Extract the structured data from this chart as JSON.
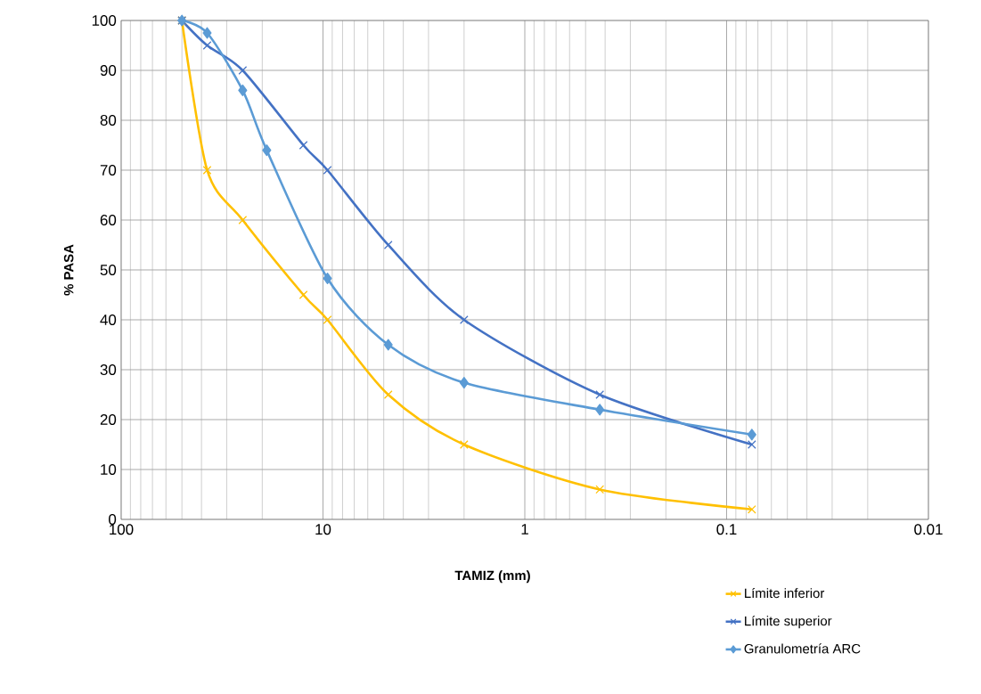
{
  "chart_data": {
    "type": "line",
    "xlabel": "TAMIZ (mm)",
    "ylabel": "% PASA",
    "log": "x",
    "grid": true,
    "legend": "bottom right",
    "line_style": "solid",
    "xlim": [
      100,
      0.01
    ],
    "xticks": [
      100,
      10,
      1,
      0.1,
      0.01
    ],
    "ylim": [
      0,
      100
    ],
    "yticks": [
      0,
      10,
      20,
      30,
      40,
      50,
      60,
      70,
      80,
      90,
      100
    ],
    "series": [
      {
        "name": "Límite inferior",
        "color": "#ffc000",
        "marker": "cross",
        "x": [
          50,
          37.5,
          25,
          12.5,
          9.5,
          4.75,
          2,
          0.425,
          0.075
        ],
        "values": [
          100,
          70,
          60,
          45,
          40,
          25,
          15,
          6,
          2
        ]
      },
      {
        "name": "Límite superior",
        "color": "#4472c4",
        "marker": "cross",
        "x": [
          50,
          37.5,
          25,
          12.5,
          9.5,
          4.75,
          2,
          0.425,
          0.075
        ],
        "values": [
          100,
          95,
          90,
          75,
          70,
          55,
          40,
          25,
          15
        ]
      },
      {
        "name": "Granulometría ARC",
        "color": "#5b9bd5",
        "marker": "diamond",
        "x": [
          50,
          37.5,
          25,
          19,
          9.5,
          4.75,
          2,
          0.425,
          0.075
        ],
        "values": [
          100,
          97.5,
          86,
          74,
          48.3,
          35,
          27.4,
          22,
          17
        ]
      }
    ]
  }
}
